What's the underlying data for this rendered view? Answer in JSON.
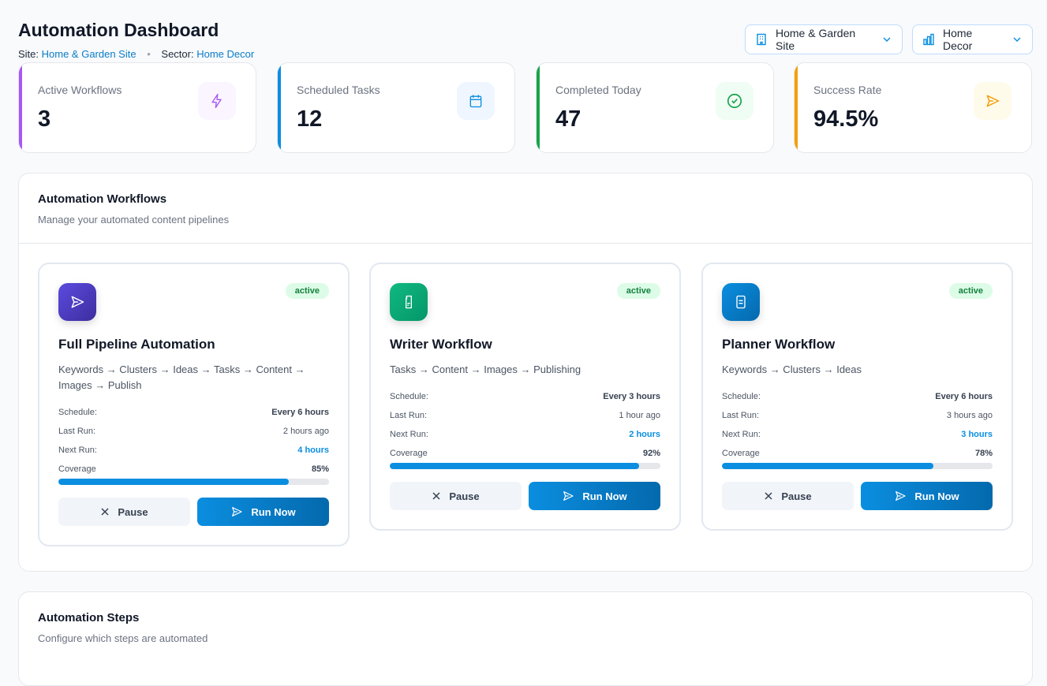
{
  "header": {
    "title": "Automation Dashboard",
    "site_label": "Site:",
    "site_value": "Home & Garden Site",
    "sector_label": "Sector:",
    "sector_value": "Home Decor",
    "separator": "•"
  },
  "selectors": {
    "site": "Home & Garden Site",
    "sector": "Home Decor",
    "site_icon": "building-icon",
    "sector_icon": "bar-chart-icon"
  },
  "stats": [
    {
      "label": "Active Workflows",
      "value": "3",
      "color": "#a855f7",
      "bg": "#faf5ff",
      "icon": "lightning-icon"
    },
    {
      "label": "Scheduled Tasks",
      "value": "12",
      "color": "#0b8ee0",
      "bg": "#eff6ff",
      "icon": "calendar-icon"
    },
    {
      "label": "Completed Today",
      "value": "47",
      "color": "#16a34a",
      "bg": "#f0fdf4",
      "icon": "check-circle-icon"
    },
    {
      "label": "Success Rate",
      "value": "94.5%",
      "color": "#f59e0b",
      "bg": "#fffbeb",
      "icon": "send-icon"
    }
  ],
  "workflows_panel": {
    "title": "Automation Workflows",
    "description": "Manage your automated content pipelines"
  },
  "workflows": [
    {
      "name": "Full Pipeline Automation",
      "status": "active",
      "pipeline": "Keywords → Clusters → Ideas → Tasks → Content → Images → Publish",
      "schedule_label": "Schedule:",
      "schedule": "Every 6 hours",
      "last_label": "Last Run:",
      "last_run": "2 hours ago",
      "next_label": "Next Run:",
      "next_run": "4 hours",
      "coverage_label": "Coverage",
      "coverage": "85%",
      "coverage_pct": 85,
      "pause": "Pause",
      "run": "Run Now",
      "icon": "send-icon",
      "gradient": [
        "#5b4be0",
        "#3d2e9e"
      ]
    },
    {
      "name": "Writer Workflow",
      "status": "active",
      "pipeline": "Tasks → Content → Images → Publishing",
      "schedule_label": "Schedule:",
      "schedule": "Every 3 hours",
      "last_label": "Last Run:",
      "last_run": "1 hour ago",
      "next_label": "Next Run:",
      "next_run": "2 hours",
      "coverage_label": "Coverage",
      "coverage": "92%",
      "coverage_pct": 92,
      "pause": "Pause",
      "run": "Run Now",
      "icon": "file-icon",
      "gradient": [
        "#10b981",
        "#059669"
      ]
    },
    {
      "name": "Planner Workflow",
      "status": "active",
      "pipeline": "Keywords → Clusters → Ideas",
      "schedule_label": "Schedule:",
      "schedule": "Every 6 hours",
      "last_label": "Last Run:",
      "last_run": "3 hours ago",
      "next_label": "Next Run:",
      "next_run": "3 hours",
      "coverage_label": "Coverage",
      "coverage": "78%",
      "coverage_pct": 78,
      "pause": "Pause",
      "run": "Run Now",
      "icon": "document-icon",
      "gradient": [
        "#0b8ee0",
        "#0469ad"
      ]
    }
  ],
  "steps_panel": {
    "title": "Automation Steps",
    "description": "Configure which steps are automated"
  }
}
